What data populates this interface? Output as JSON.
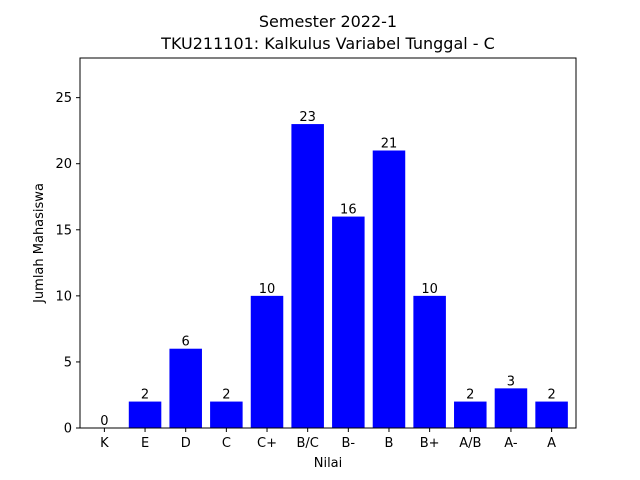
{
  "chart_data": {
    "type": "bar",
    "title": "Semester 2022-1",
    "subtitle": "TKU211101: Kalkulus Variabel Tunggal - C",
    "xlabel": "Nilai",
    "ylabel": "Jumlah Mahasiswa",
    "categories": [
      "K",
      "E",
      "D",
      "C",
      "C+",
      "B/C",
      "B-",
      "B",
      "B+",
      "A/B",
      "A-",
      "A"
    ],
    "values": [
      0,
      2,
      6,
      2,
      10,
      23,
      16,
      21,
      10,
      2,
      3,
      2
    ],
    "ylim": [
      0,
      28
    ],
    "yticks": [
      0,
      5,
      10,
      15,
      20,
      25
    ],
    "bar_color": "#0000ff",
    "grid": false,
    "legend": "none"
  }
}
